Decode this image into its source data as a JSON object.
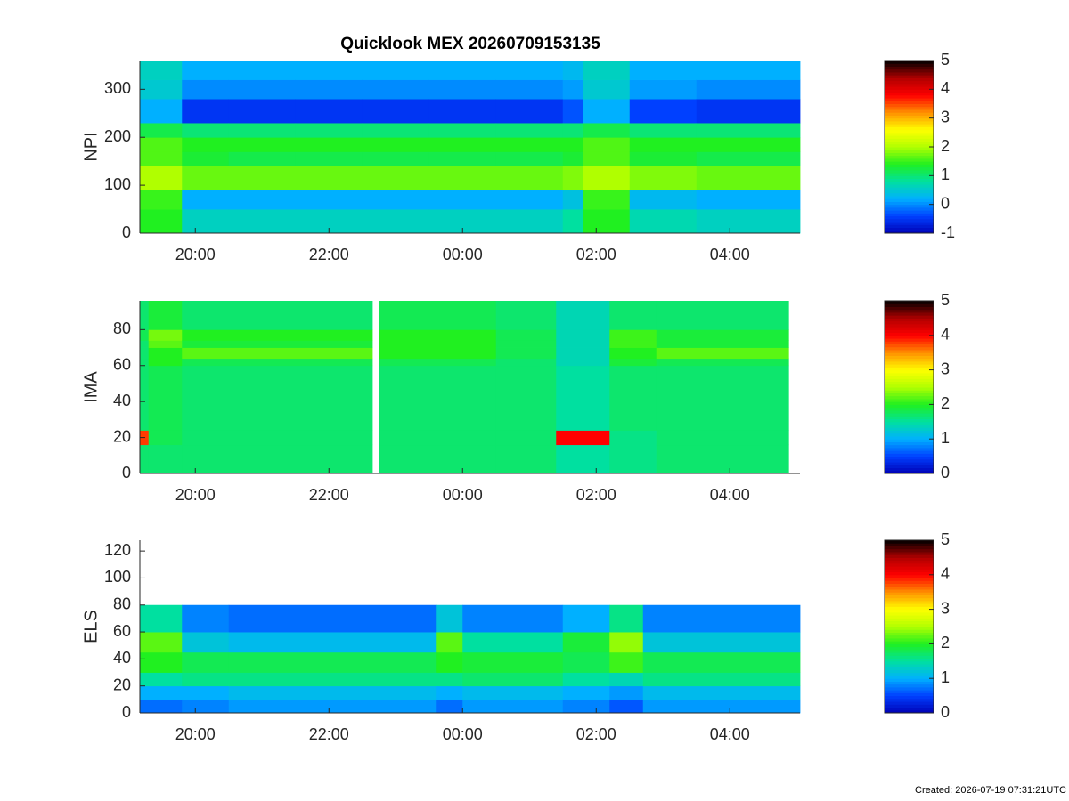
{
  "title": "Quicklook MEX 20260709153135",
  "footer": "Created: 2026-07-19 07:31:21UTC",
  "chart_data": [
    {
      "type": "heatmap",
      "ylabel": "NPI",
      "xlim": [
        19.17,
        29.05
      ],
      "xticks": [
        {
          "value": 20,
          "label": "20:00"
        },
        {
          "value": 22,
          "label": "22:00"
        },
        {
          "value": 24,
          "label": "00:00"
        },
        {
          "value": 26,
          "label": "02:00"
        },
        {
          "value": 28,
          "label": "04:00"
        }
      ],
      "ylim": [
        0,
        360
      ],
      "yticks": [
        0,
        100,
        200,
        300
      ],
      "xbins": [
        19.17,
        19.8,
        20.5,
        21.5,
        22.5,
        23.5,
        24.5,
        25.5,
        25.8,
        26.5,
        27.5,
        28.5,
        29.05
      ],
      "ybins": [
        0,
        50,
        90,
        140,
        170,
        200,
        230,
        280,
        320,
        360
      ],
      "z": [
        [
          1.4,
          1.5,
          2.0,
          1.6,
          1.6,
          1.2,
          0.2,
          0.5,
          0.6
        ],
        [
          0.6,
          0.2,
          1.7,
          1.3,
          1.4,
          1.0,
          -0.5,
          0.0,
          0.2
        ],
        [
          0.6,
          0.2,
          1.7,
          1.2,
          1.4,
          1.0,
          -0.5,
          0.0,
          0.2
        ],
        [
          0.6,
          0.2,
          1.7,
          1.2,
          1.4,
          1.0,
          -0.5,
          0.0,
          0.2
        ],
        [
          0.6,
          0.2,
          1.7,
          1.2,
          1.4,
          1.0,
          -0.5,
          0.0,
          0.2
        ],
        [
          0.6,
          0.2,
          1.7,
          1.2,
          1.4,
          1.0,
          -0.5,
          0.0,
          0.2
        ],
        [
          0.6,
          0.2,
          1.7,
          1.2,
          1.4,
          1.0,
          -0.5,
          0.0,
          0.2
        ],
        [
          0.8,
          0.4,
          1.8,
          1.3,
          1.4,
          1.0,
          -0.3,
          0.1,
          0.3
        ],
        [
          1.4,
          1.5,
          2.0,
          1.6,
          1.6,
          1.2,
          0.2,
          0.5,
          0.6
        ],
        [
          0.7,
          0.3,
          1.8,
          1.3,
          1.4,
          1.0,
          -0.4,
          0.1,
          0.2
        ],
        [
          0.6,
          0.2,
          1.7,
          1.2,
          1.4,
          1.0,
          -0.5,
          0.0,
          0.2
        ],
        [
          0.6,
          0.2,
          1.7,
          1.2,
          1.4,
          1.0,
          -0.5,
          0.0,
          0.2
        ]
      ],
      "clim": [
        -1,
        5
      ],
      "cticks": [
        -1,
        0,
        1,
        2,
        3,
        4,
        5
      ],
      "colormap": [
        "#0000b4",
        "#0040ff",
        "#00b0ff",
        "#00e0a0",
        "#20f020",
        "#b0ff00",
        "#ffff00",
        "#ff9000",
        "#ff0000",
        "#b00000",
        "#000000"
      ]
    },
    {
      "type": "heatmap",
      "ylabel": "IMA",
      "xlim": [
        19.17,
        29.05
      ],
      "xticks": [
        {
          "value": 20,
          "label": "20:00"
        },
        {
          "value": 22,
          "label": "22:00"
        },
        {
          "value": 24,
          "label": "00:00"
        },
        {
          "value": 26,
          "label": "02:00"
        },
        {
          "value": 28,
          "label": "04:00"
        }
      ],
      "ylim": [
        0,
        96
      ],
      "yticks": [
        0,
        20,
        40,
        60,
        80
      ],
      "xbins": [
        19.17,
        19.3,
        19.8,
        22.65,
        22.75,
        24.5,
        25.4,
        26.2,
        26.9,
        28.88
      ],
      "ybins": [
        0,
        16,
        24,
        60,
        64,
        70,
        74,
        80,
        96
      ],
      "z": [
        [
          1.7,
          3.8,
          1.7,
          1.7,
          1.7,
          1.7,
          1.8,
          1.7
        ],
        [
          1.7,
          1.8,
          1.8,
          2.0,
          2.0,
          2.2,
          2.3,
          1.9
        ],
        [
          1.7,
          1.7,
          1.7,
          1.8,
          2.2,
          1.9,
          2.0,
          1.7
        ],
        [
          null,
          null,
          null,
          null,
          null,
          null,
          null,
          null
        ],
        [
          1.7,
          1.7,
          1.7,
          1.8,
          2.0,
          2.0,
          2.0,
          1.8
        ],
        [
          1.7,
          1.7,
          1.7,
          1.7,
          1.8,
          1.8,
          1.8,
          1.7
        ],
        [
          1.5,
          4.0,
          1.5,
          1.4,
          1.4,
          1.4,
          1.4,
          1.4
        ],
        [
          1.6,
          1.6,
          1.7,
          1.9,
          2.0,
          2.1,
          2.1,
          1.7
        ],
        [
          1.7,
          1.7,
          1.7,
          1.8,
          2.2,
          1.9,
          1.9,
          1.7
        ]
      ],
      "clim": [
        0,
        5
      ],
      "cticks": [
        0,
        1,
        2,
        3,
        4,
        5
      ],
      "colormap": [
        "#0000b4",
        "#0040ff",
        "#00b0ff",
        "#00e0a0",
        "#20f020",
        "#b0ff00",
        "#ffff00",
        "#ff9000",
        "#ff0000",
        "#b00000",
        "#000000"
      ]
    },
    {
      "type": "heatmap",
      "ylabel": "ELS",
      "xlim": [
        19.17,
        29.05
      ],
      "xticks": [
        {
          "value": 20,
          "label": "20:00"
        },
        {
          "value": 22,
          "label": "22:00"
        },
        {
          "value": 24,
          "label": "00:00"
        },
        {
          "value": 26,
          "label": "02:00"
        },
        {
          "value": 28,
          "label": "04:00"
        }
      ],
      "ylim": [
        0,
        128
      ],
      "yticks": [
        0,
        20,
        40,
        60,
        80,
        100,
        120
      ],
      "xbins": [
        19.17,
        19.8,
        20.5,
        23.6,
        24.0,
        25.5,
        26.2,
        26.7,
        29.05
      ],
      "ybins": [
        0,
        10,
        20,
        30,
        45,
        60,
        80,
        128
      ],
      "z": [
        [
          0.7,
          1.0,
          1.5,
          2.0,
          2.2,
          1.5,
          null
        ],
        [
          0.8,
          1.0,
          1.6,
          1.8,
          1.2,
          0.8,
          null
        ],
        [
          0.9,
          1.1,
          1.6,
          1.8,
          1.1,
          0.7,
          null
        ],
        [
          0.7,
          1.0,
          1.6,
          2.0,
          2.2,
          1.2,
          null
        ],
        [
          0.9,
          1.1,
          1.7,
          1.9,
          1.5,
          0.8,
          null
        ],
        [
          0.8,
          1.0,
          1.5,
          1.8,
          1.9,
          1.0,
          null
        ],
        [
          0.6,
          0.9,
          1.4,
          2.1,
          2.4,
          1.6,
          null
        ],
        [
          0.9,
          1.1,
          1.6,
          1.8,
          1.2,
          0.8,
          null
        ]
      ],
      "clim": [
        0,
        5
      ],
      "cticks": [
        0,
        1,
        2,
        3,
        4,
        5
      ],
      "colormap": [
        "#0000b4",
        "#0040ff",
        "#00b0ff",
        "#00e0a0",
        "#20f020",
        "#b0ff00",
        "#ffff00",
        "#ff9000",
        "#ff0000",
        "#b00000",
        "#000000"
      ]
    }
  ]
}
